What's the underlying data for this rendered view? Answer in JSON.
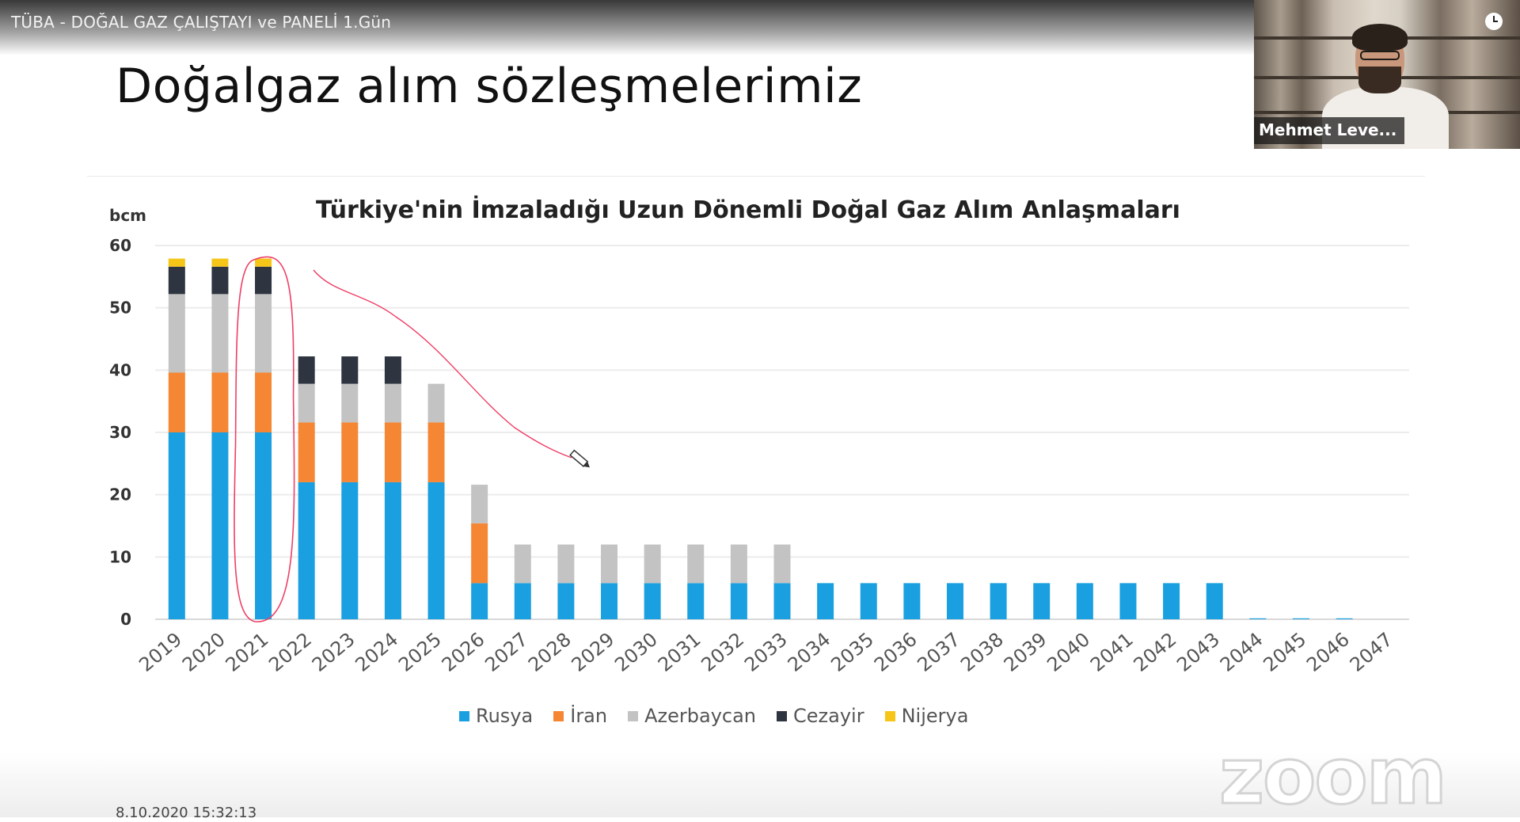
{
  "video": {
    "title": "TÜBA - DOĞAL GAZ ÇALIŞTAYI ve PANELİ 1.Gün"
  },
  "slide": {
    "title": "Doğalgaz alım sözleşmelerimiz"
  },
  "webcam": {
    "participant_name": "Mehmet Leve..."
  },
  "watermark": {
    "text": "zoom"
  },
  "footer": {
    "timestamp": "8.10.2020 15:32:13"
  },
  "icons": {
    "clock": "clock-icon",
    "pen": "pen-cursor-icon"
  },
  "chart_data": {
    "type": "bar",
    "stacked": true,
    "title": "Türkiye'nin İmzaladığı Uzun Dönemli Doğal Gaz Alım Anlaşmaları",
    "ylabel": "bcm",
    "ylim": [
      0,
      60
    ],
    "yticks": [
      0,
      10,
      20,
      30,
      40,
      50,
      60
    ],
    "grid": true,
    "legend_position": "bottom",
    "categories": [
      "2019",
      "2020",
      "2021",
      "2022",
      "2023",
      "2024",
      "2025",
      "2026",
      "2027",
      "2028",
      "2029",
      "2030",
      "2031",
      "2032",
      "2033",
      "2034",
      "2035",
      "2036",
      "2037",
      "2038",
      "2039",
      "2040",
      "2041",
      "2042",
      "2043",
      "2044",
      "2045",
      "2046",
      "2047"
    ],
    "series": [
      {
        "name": "Rusya",
        "color": "#1aa0e0",
        "values": [
          30,
          30,
          30,
          22,
          22,
          22,
          22,
          5.8,
          5.8,
          5.8,
          5.8,
          5.8,
          5.8,
          5.8,
          5.8,
          5.8,
          5.8,
          5.8,
          5.8,
          5.8,
          5.8,
          5.8,
          5.8,
          5.8,
          5.8,
          0.15,
          0.15,
          0.15,
          0
        ]
      },
      {
        "name": "İran",
        "color": "#f58634",
        "values": [
          9.6,
          9.6,
          9.6,
          9.6,
          9.6,
          9.6,
          9.6,
          9.6,
          0,
          0,
          0,
          0,
          0,
          0,
          0,
          0,
          0,
          0,
          0,
          0,
          0,
          0,
          0,
          0,
          0,
          0,
          0,
          0,
          0
        ]
      },
      {
        "name": "Azerbaycan",
        "color": "#c3c3c3",
        "values": [
          12.6,
          12.6,
          12.6,
          6.2,
          6.2,
          6.2,
          6.2,
          6.2,
          6.2,
          6.2,
          6.2,
          6.2,
          6.2,
          6.2,
          6.2,
          0,
          0,
          0,
          0,
          0,
          0,
          0,
          0,
          0,
          0,
          0,
          0,
          0,
          0
        ]
      },
      {
        "name": "Cezayir",
        "color": "#2e3440",
        "values": [
          4.4,
          4.4,
          4.4,
          4.4,
          4.4,
          4.4,
          0,
          0,
          0,
          0,
          0,
          0,
          0,
          0,
          0,
          0,
          0,
          0,
          0,
          0,
          0,
          0,
          0,
          0,
          0,
          0,
          0,
          0,
          0
        ]
      },
      {
        "name": "Nijerya",
        "color": "#f5c518",
        "values": [
          1.3,
          1.3,
          1.3,
          0,
          0,
          0,
          0,
          0,
          0,
          0,
          0,
          0,
          0,
          0,
          0,
          0,
          0,
          0,
          0,
          0,
          0,
          0,
          0,
          0,
          0,
          0,
          0,
          0,
          0
        ]
      }
    ]
  }
}
